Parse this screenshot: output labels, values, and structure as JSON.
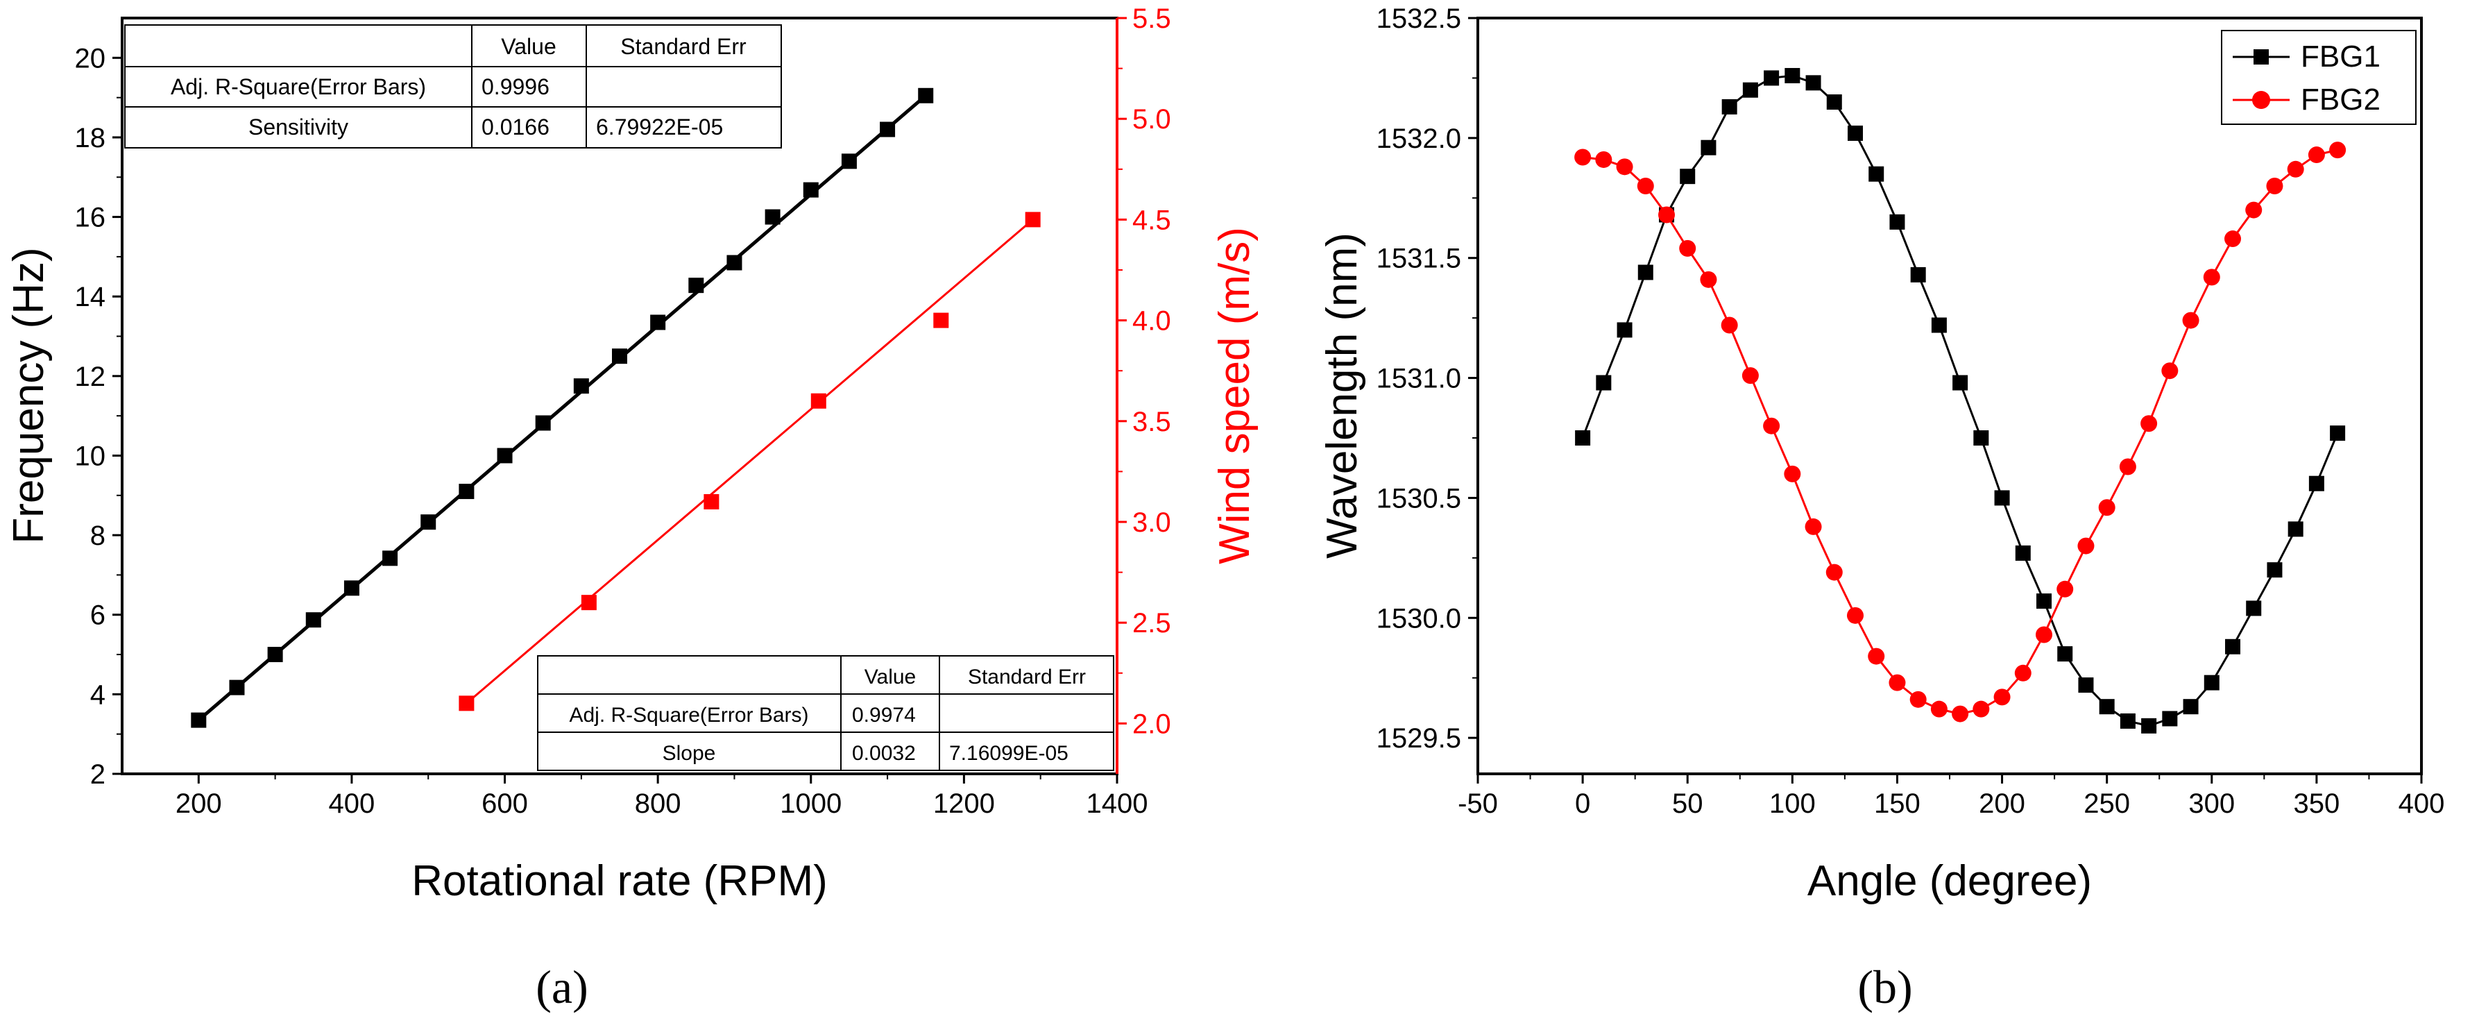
{
  "colors": {
    "black": "#000000",
    "red": "#ff0000"
  },
  "chart_data": [
    {
      "type": "line",
      "panel_label": "(a)",
      "title": "",
      "xlabel": "Rotational rate (RPM)",
      "ylabel": "Frequency (Hz)",
      "y2label": "Wind speed (m/s)",
      "xlim": [
        100,
        1400
      ],
      "ylim": [
        2,
        21
      ],
      "y2lim": [
        1.75,
        5.5
      ],
      "xticks": [
        200,
        400,
        600,
        800,
        1000,
        1200,
        1400
      ],
      "yticks": [
        2,
        4,
        6,
        8,
        10,
        12,
        14,
        16,
        18,
        20
      ],
      "y2ticks": [
        2.0,
        2.5,
        3.0,
        3.5,
        4.0,
        4.5,
        5.0,
        5.5
      ],
      "series": [
        {
          "name": "Frequency",
          "axis": "left",
          "color": "#000000",
          "marker": "square",
          "x": [
            200,
            250,
            300,
            350,
            400,
            450,
            500,
            550,
            600,
            650,
            700,
            750,
            800,
            850,
            900,
            950,
            1000,
            1050,
            1100,
            1150
          ],
          "y": [
            3.35,
            4.17,
            5.0,
            5.87,
            6.67,
            7.42,
            8.33,
            9.1,
            10.0,
            10.82,
            11.75,
            12.5,
            13.35,
            14.28,
            14.85,
            16.0,
            16.68,
            17.4,
            18.2,
            19.05
          ],
          "fit": {
            "x": [
              200,
              1150
            ],
            "y": [
              3.35,
              19.05
            ]
          }
        },
        {
          "name": "Wind speed",
          "axis": "right",
          "color": "#ff0000",
          "marker": "square",
          "x": [
            550,
            710,
            870,
            1010,
            1170,
            1290
          ],
          "y": [
            2.1,
            2.6,
            3.1,
            3.6,
            4.0,
            4.5
          ],
          "fit": {
            "x": [
              550,
              1290
            ],
            "y": [
              2.1,
              4.5
            ]
          }
        }
      ],
      "tables": [
        {
          "position": "top-left",
          "header": [
            "",
            "Value",
            "Standard Err"
          ],
          "rows": [
            [
              "Adj. R-Square(Error Bars)",
              "0.9996",
              ""
            ],
            [
              "Sensitivity",
              "0.0166",
              "6.79922E-05"
            ]
          ]
        },
        {
          "position": "bottom-right",
          "header": [
            "",
            "Value",
            "Standard Err"
          ],
          "rows": [
            [
              "Adj. R-Square(Error Bars)",
              "0.9974",
              ""
            ],
            [
              "Slope",
              "0.0032",
              "7.16099E-05"
            ]
          ]
        }
      ]
    },
    {
      "type": "line",
      "panel_label": "(b)",
      "title": "",
      "xlabel": "Angle (degree)",
      "ylabel": "Wavelength (nm)",
      "xlim": [
        -50,
        400
      ],
      "ylim": [
        1529.35,
        1532.5
      ],
      "xticks": [
        -50,
        0,
        50,
        100,
        150,
        200,
        250,
        300,
        350,
        400
      ],
      "yticks": [
        1529.5,
        1530.0,
        1530.5,
        1531.0,
        1531.5,
        1532.0,
        1532.5
      ],
      "legend": "top-right",
      "series": [
        {
          "name": "FBG1",
          "color": "#000000",
          "marker": "square",
          "x": [
            0,
            10,
            20,
            30,
            40,
            50,
            60,
            70,
            80,
            90,
            100,
            110,
            120,
            130,
            140,
            150,
            160,
            170,
            180,
            190,
            200,
            210,
            220,
            230,
            240,
            250,
            260,
            270,
            280,
            290,
            300,
            310,
            320,
            330,
            340,
            350,
            360
          ],
          "y": [
            1530.75,
            1530.98,
            1531.2,
            1531.44,
            1531.68,
            1531.84,
            1531.96,
            1532.13,
            1532.2,
            1532.25,
            1532.26,
            1532.23,
            1532.15,
            1532.02,
            1531.85,
            1531.65,
            1531.43,
            1531.22,
            1530.98,
            1530.75,
            1530.5,
            1530.27,
            1530.07,
            1529.85,
            1529.72,
            1529.63,
            1529.57,
            1529.55,
            1529.58,
            1529.63,
            1529.73,
            1529.88,
            1530.04,
            1530.2,
            1530.37,
            1530.56,
            1530.77
          ]
        },
        {
          "name": "FBG2",
          "color": "#ff0000",
          "marker": "circle",
          "x": [
            0,
            10,
            20,
            30,
            40,
            50,
            60,
            70,
            80,
            90,
            100,
            110,
            120,
            130,
            140,
            150,
            160,
            170,
            180,
            190,
            200,
            210,
            220,
            230,
            240,
            250,
            260,
            270,
            280,
            290,
            300,
            310,
            320,
            330,
            340,
            350,
            360
          ],
          "y": [
            1531.92,
            1531.91,
            1531.88,
            1531.8,
            1531.68,
            1531.54,
            1531.41,
            1531.22,
            1531.01,
            1530.8,
            1530.6,
            1530.38,
            1530.19,
            1530.01,
            1529.84,
            1529.73,
            1529.66,
            1529.62,
            1529.6,
            1529.62,
            1529.67,
            1529.77,
            1529.93,
            1530.12,
            1530.3,
            1530.46,
            1530.63,
            1530.81,
            1531.03,
            1531.24,
            1531.42,
            1531.58,
            1531.7,
            1531.8,
            1531.87,
            1531.93,
            1531.95
          ]
        }
      ]
    }
  ]
}
